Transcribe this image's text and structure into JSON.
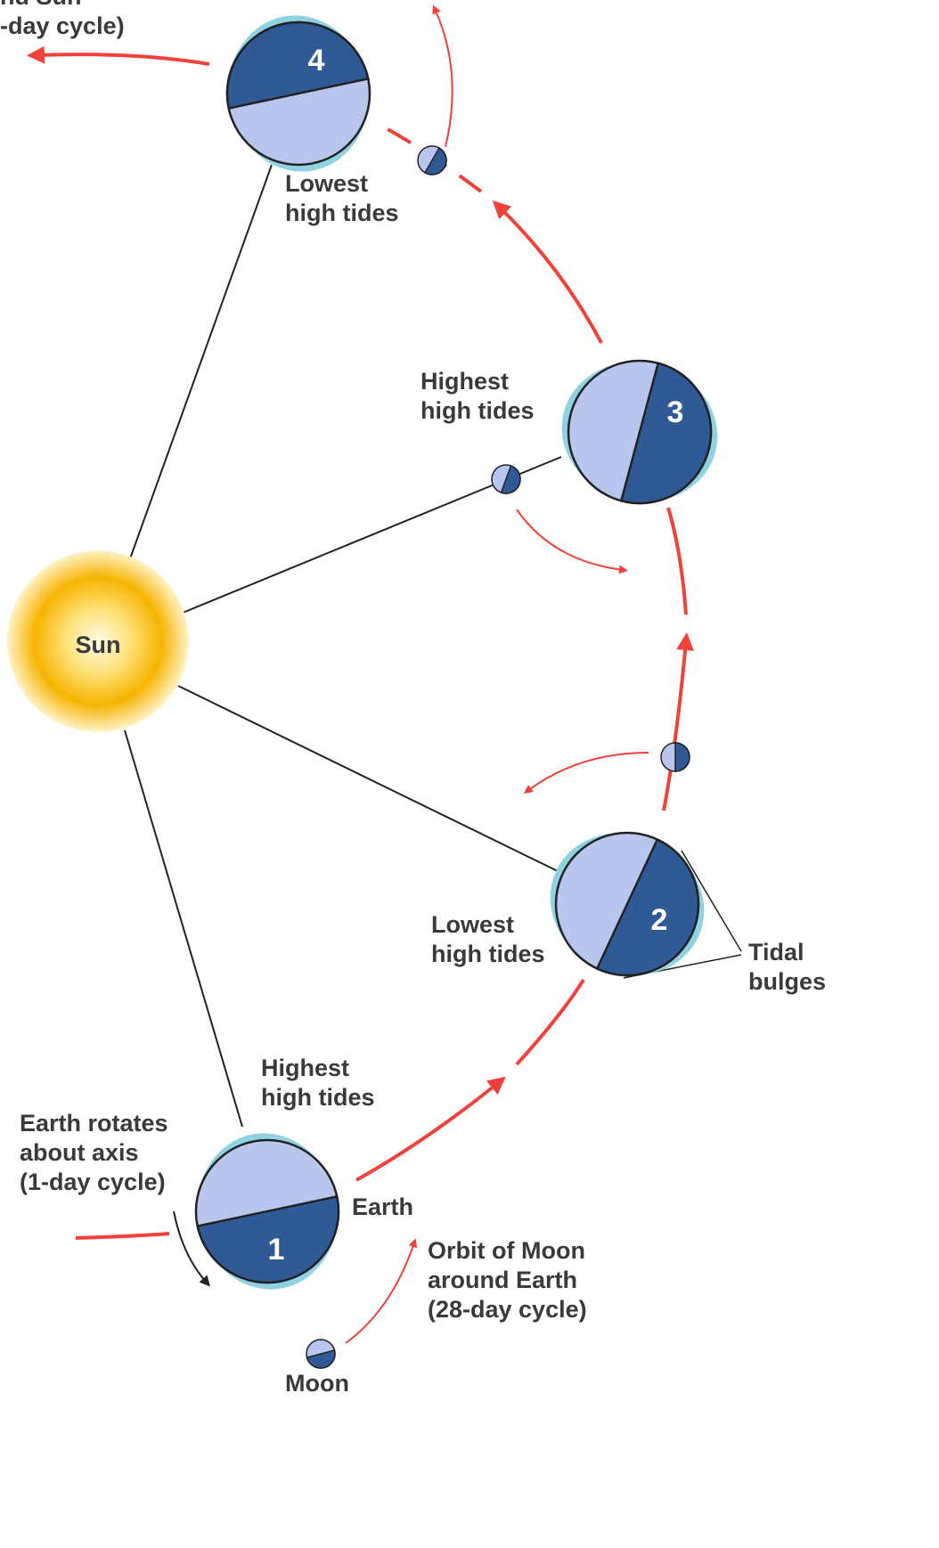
{
  "header_partial": [
    "nd Sun",
    "-day cycle)"
  ],
  "sun": "Sun",
  "earths": [
    {
      "number": "1",
      "label": [
        "Highest",
        "high tides"
      ]
    },
    {
      "number": "2",
      "label": [
        "Lowest",
        "high tides"
      ]
    },
    {
      "number": "3",
      "label": [
        "Highest",
        "high tides"
      ]
    },
    {
      "number": "4",
      "label": [
        "Lowest",
        "high tides"
      ]
    }
  ],
  "tidal_bulges": [
    "Tidal",
    "bulges"
  ],
  "rotation": [
    "Earth rotates",
    "about axis",
    "(1-day cycle)"
  ],
  "earth": "Earth",
  "moon_orbit": [
    "Orbit of Moon",
    "around Earth",
    "(28-day cycle)"
  ],
  "moon": "Moon"
}
